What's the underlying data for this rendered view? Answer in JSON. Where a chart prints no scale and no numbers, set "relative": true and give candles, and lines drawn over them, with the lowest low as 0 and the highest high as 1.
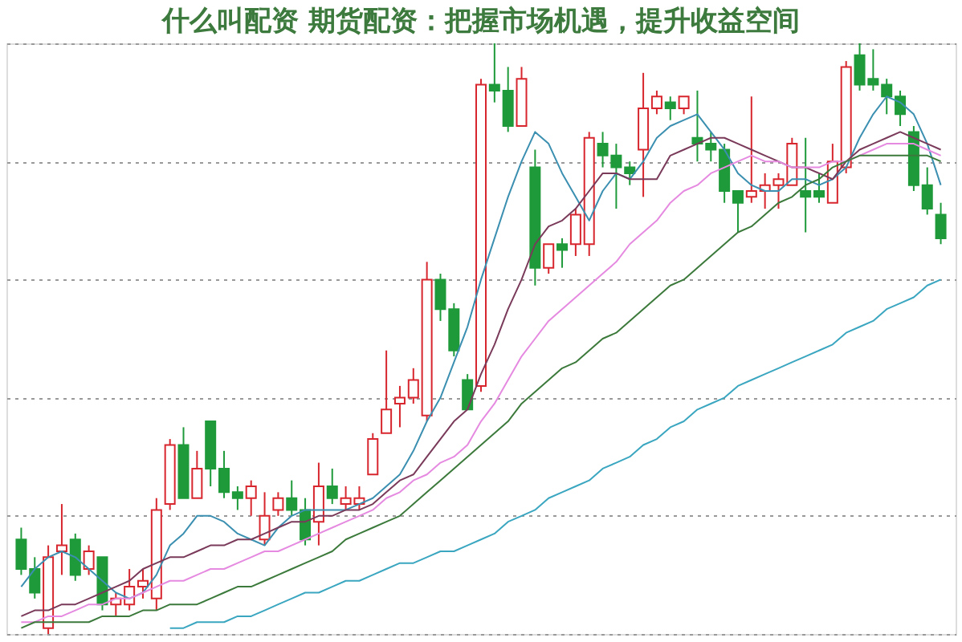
{
  "chart_data": {
    "type": "candlestick",
    "title": "什么叫配资 期货配资：把握市场机遇，提升收益空间",
    "relative": true,
    "grid": "y",
    "categories": [
      null,
      null,
      null,
      null,
      null,
      null,
      null,
      null,
      null,
      null,
      null,
      null,
      null,
      null,
      null,
      null,
      null,
      null,
      null,
      null,
      null,
      null,
      null,
      null,
      null,
      null,
      null,
      null,
      null,
      null,
      null,
      null,
      null,
      null,
      null,
      null,
      null,
      null,
      null,
      null,
      null,
      null,
      null,
      null,
      null,
      null,
      null,
      null,
      null,
      null,
      null,
      null,
      null,
      null,
      null,
      null,
      null,
      null,
      null,
      null,
      null,
      null,
      null,
      null,
      null,
      null,
      null,
      null,
      null
    ],
    "colors": [
      "#1f9a3a",
      "#1f9a3a",
      "#d7262e",
      "#d7262e",
      "#1f9a3a",
      "#d7262e",
      "#1f9a3a",
      "#d7262e",
      "#d7262e",
      "#d7262e",
      "#d7262e",
      "#d7262e",
      "#1f9a3a",
      "#d7262e",
      "#1f9a3a",
      "#1f9a3a",
      "#1f9a3a",
      "#d7262e",
      "#d7262e",
      "#d7262e",
      "#1f9a3a",
      "#1f9a3a",
      "#d7262e",
      "#1f9a3a",
      "#d7262e",
      "#d7262e",
      "#d7262e",
      "#d7262e",
      "#d7262e",
      "#d7262e",
      "#d7262e",
      "#1f9a3a",
      "#1f9a3a",
      "#1f9a3a",
      "#d7262e",
      "#1f9a3a",
      "#1f9a3a",
      "#d7262e",
      "#1f9a3a",
      "#d7262e",
      "#1f9a3a",
      "#d7262e",
      "#d7262e",
      "#1f9a3a",
      "#1f9a3a",
      "#1f9a3a",
      "#d7262e",
      "#d7262e",
      "#1f9a3a",
      "#d7262e",
      "#1f9a3a",
      "#1f9a3a",
      "#1f9a3a",
      "#1f9a3a",
      "#d7262e",
      "#d7262e",
      "#d7262e",
      "#d7262e",
      "#1f9a3a",
      "#1f9a3a",
      "#d7262e",
      "#d7262e",
      "#1f9a3a",
      "#1f9a3a",
      "#1f9a3a",
      "#1f9a3a",
      "#1f9a3a",
      "#1f9a3a",
      "#1f9a3a"
    ],
    "ohlc": [
      [
        0.16,
        0.18,
        0.1,
        0.11
      ],
      [
        0.11,
        0.13,
        0.06,
        0.07
      ],
      [
        0.01,
        0.15,
        0.0,
        0.13
      ],
      [
        0.14,
        0.22,
        0.1,
        0.15
      ],
      [
        0.16,
        0.17,
        0.09,
        0.1
      ],
      [
        0.11,
        0.15,
        0.1,
        0.14
      ],
      [
        0.13,
        0.13,
        0.04,
        0.05
      ],
      [
        0.05,
        0.07,
        0.03,
        0.06
      ],
      [
        0.05,
        0.11,
        0.04,
        0.08
      ],
      [
        0.08,
        0.11,
        0.06,
        0.09
      ],
      [
        0.06,
        0.23,
        0.04,
        0.21
      ],
      [
        0.22,
        0.33,
        0.21,
        0.32
      ],
      [
        0.32,
        0.35,
        0.23,
        0.23
      ],
      [
        0.23,
        0.31,
        0.23,
        0.28
      ],
      [
        0.36,
        0.36,
        0.25,
        0.28
      ],
      [
        0.28,
        0.31,
        0.23,
        0.24
      ],
      [
        0.24,
        0.25,
        0.21,
        0.23
      ],
      [
        0.23,
        0.26,
        0.2,
        0.25
      ],
      [
        0.16,
        0.24,
        0.15,
        0.2
      ],
      [
        0.21,
        0.24,
        0.2,
        0.23
      ],
      [
        0.23,
        0.26,
        0.2,
        0.21
      ],
      [
        0.21,
        0.23,
        0.15,
        0.16
      ],
      [
        0.19,
        0.29,
        0.15,
        0.25
      ],
      [
        0.25,
        0.28,
        0.22,
        0.23
      ],
      [
        0.22,
        0.25,
        0.21,
        0.23
      ],
      [
        0.22,
        0.25,
        0.21,
        0.23
      ],
      [
        0.27,
        0.34,
        0.27,
        0.33
      ],
      [
        0.34,
        0.48,
        0.34,
        0.38
      ],
      [
        0.39,
        0.42,
        0.35,
        0.4
      ],
      [
        0.4,
        0.45,
        0.39,
        0.43
      ],
      [
        0.37,
        0.63,
        0.36,
        0.6
      ],
      [
        0.6,
        0.61,
        0.53,
        0.55
      ],
      [
        0.55,
        0.56,
        0.47,
        0.48
      ],
      [
        0.43,
        0.44,
        0.38,
        0.38
      ],
      [
        0.42,
        0.94,
        0.41,
        0.93
      ],
      [
        0.93,
        1.0,
        0.9,
        0.92
      ],
      [
        0.92,
        0.96,
        0.85,
        0.86
      ],
      [
        0.86,
        0.96,
        0.86,
        0.94
      ],
      [
        0.79,
        0.82,
        0.59,
        0.62
      ],
      [
        0.62,
        0.66,
        0.61,
        0.66
      ],
      [
        0.66,
        0.67,
        0.62,
        0.65
      ],
      [
        0.66,
        0.72,
        0.64,
        0.71
      ],
      [
        0.66,
        0.85,
        0.64,
        0.84
      ],
      [
        0.83,
        0.85,
        0.79,
        0.81
      ],
      [
        0.81,
        0.83,
        0.72,
        0.79
      ],
      [
        0.79,
        0.8,
        0.76,
        0.78
      ],
      [
        0.82,
        0.95,
        0.74,
        0.89
      ],
      [
        0.89,
        0.92,
        0.88,
        0.91
      ],
      [
        0.9,
        0.91,
        0.87,
        0.89
      ],
      [
        0.89,
        0.91,
        0.88,
        0.91
      ],
      [
        0.84,
        0.92,
        0.8,
        0.83
      ],
      [
        0.83,
        0.85,
        0.8,
        0.82
      ],
      [
        0.82,
        0.83,
        0.73,
        0.75
      ],
      [
        0.75,
        0.75,
        0.68,
        0.73
      ],
      [
        0.74,
        0.91,
        0.73,
        0.75
      ],
      [
        0.75,
        0.78,
        0.72,
        0.76
      ],
      [
        0.76,
        0.78,
        0.72,
        0.77
      ],
      [
        0.76,
        0.84,
        0.76,
        0.83
      ],
      [
        0.75,
        0.84,
        0.68,
        0.74
      ],
      [
        0.75,
        0.78,
        0.73,
        0.74
      ],
      [
        0.73,
        0.83,
        0.73,
        0.8
      ],
      [
        0.79,
        0.97,
        0.78,
        0.96
      ],
      [
        0.98,
        1.0,
        0.92,
        0.93
      ],
      [
        0.94,
        0.99,
        0.92,
        0.93
      ],
      [
        0.93,
        0.94,
        0.88,
        0.91
      ],
      [
        0.91,
        0.92,
        0.86,
        0.88
      ],
      [
        0.85,
        0.86,
        0.75,
        0.76
      ],
      [
        0.76,
        0.79,
        0.71,
        0.72
      ],
      [
        0.71,
        0.73,
        0.66,
        0.67
      ]
    ],
    "series": [
      {
        "type": "line",
        "color": "#3b8fb0",
        "values": [
          0.08,
          0.11,
          0.13,
          0.14,
          0.13,
          0.11,
          0.09,
          0.07,
          0.06,
          0.07,
          0.1,
          0.15,
          0.17,
          0.2,
          0.2,
          0.19,
          0.17,
          0.16,
          0.15,
          0.18,
          0.2,
          0.21,
          0.21,
          0.21,
          0.21,
          0.22,
          0.23,
          0.25,
          0.27,
          0.31,
          0.36,
          0.4,
          0.46,
          0.52,
          0.6,
          0.67,
          0.74,
          0.8,
          0.85,
          0.83,
          0.78,
          0.74,
          0.7,
          0.75,
          0.78,
          0.77,
          0.8,
          0.84,
          0.86,
          0.87,
          0.88,
          0.85,
          0.82,
          0.78,
          0.76,
          0.75,
          0.75,
          0.77,
          0.77,
          0.76,
          0.77,
          0.79,
          0.84,
          0.88,
          0.91,
          0.9,
          0.88,
          0.83,
          0.76
        ]
      },
      {
        "type": "line",
        "color": "#7a3a5a",
        "values": [
          0.03,
          0.04,
          0.04,
          0.05,
          0.05,
          0.06,
          0.07,
          0.08,
          0.09,
          0.11,
          0.12,
          0.13,
          0.13,
          0.14,
          0.15,
          0.15,
          0.16,
          0.16,
          0.17,
          0.18,
          0.19,
          0.19,
          0.2,
          0.2,
          0.21,
          0.21,
          0.22,
          0.24,
          0.26,
          0.27,
          0.3,
          0.33,
          0.36,
          0.38,
          0.44,
          0.49,
          0.55,
          0.6,
          0.66,
          0.69,
          0.7,
          0.72,
          0.75,
          0.78,
          0.78,
          0.77,
          0.77,
          0.77,
          0.81,
          0.82,
          0.83,
          0.84,
          0.84,
          0.83,
          0.82,
          0.81,
          0.8,
          0.79,
          0.79,
          0.78,
          0.77,
          0.8,
          0.82,
          0.83,
          0.84,
          0.85,
          0.84,
          0.83,
          0.82
        ]
      },
      {
        "type": "line",
        "color": "#e58ae0",
        "values": [
          0.02,
          0.02,
          0.03,
          0.03,
          0.04,
          0.05,
          0.05,
          0.06,
          0.06,
          0.07,
          0.08,
          0.09,
          0.09,
          0.1,
          0.11,
          0.11,
          0.12,
          0.13,
          0.14,
          0.14,
          0.15,
          0.16,
          0.17,
          0.18,
          0.19,
          0.2,
          0.21,
          0.23,
          0.24,
          0.26,
          0.27,
          0.29,
          0.3,
          0.32,
          0.36,
          0.39,
          0.43,
          0.47,
          0.5,
          0.53,
          0.55,
          0.57,
          0.59,
          0.61,
          0.63,
          0.66,
          0.68,
          0.7,
          0.73,
          0.75,
          0.76,
          0.78,
          0.79,
          0.8,
          0.81,
          0.8,
          0.8,
          0.79,
          0.79,
          0.79,
          0.8,
          0.8,
          0.81,
          0.82,
          0.83,
          0.83,
          0.83,
          0.82,
          0.81
        ]
      },
      {
        "type": "line",
        "color": "#3c7a3c",
        "values": [
          0.01,
          0.02,
          0.02,
          0.02,
          0.02,
          0.02,
          0.03,
          0.03,
          0.03,
          0.04,
          0.04,
          0.05,
          0.05,
          0.05,
          0.06,
          0.07,
          0.08,
          0.08,
          0.09,
          0.1,
          0.11,
          0.12,
          0.13,
          0.14,
          0.16,
          0.17,
          0.18,
          0.19,
          0.2,
          0.22,
          0.24,
          0.26,
          0.28,
          0.3,
          0.32,
          0.34,
          0.36,
          0.39,
          0.41,
          0.43,
          0.45,
          0.46,
          0.48,
          0.5,
          0.51,
          0.53,
          0.55,
          0.57,
          0.59,
          0.6,
          0.62,
          0.64,
          0.66,
          0.68,
          0.69,
          0.71,
          0.73,
          0.74,
          0.76,
          0.77,
          0.79,
          0.8,
          0.81,
          0.81,
          0.81,
          0.81,
          0.81,
          0.81,
          0.8
        ]
      },
      {
        "type": "line",
        "color": "#3aa6c0",
        "values": [
          null,
          null,
          null,
          null,
          null,
          null,
          null,
          null,
          null,
          null,
          null,
          0.01,
          0.01,
          0.02,
          0.02,
          0.02,
          0.03,
          0.03,
          0.04,
          0.05,
          0.06,
          0.07,
          0.07,
          0.08,
          0.09,
          0.09,
          0.1,
          0.11,
          0.12,
          0.12,
          0.13,
          0.14,
          0.14,
          0.15,
          0.16,
          0.17,
          0.19,
          0.2,
          0.21,
          0.23,
          0.24,
          0.25,
          0.26,
          0.28,
          0.29,
          0.3,
          0.32,
          0.33,
          0.35,
          0.36,
          0.38,
          0.39,
          0.4,
          0.42,
          0.43,
          0.44,
          0.45,
          0.46,
          0.47,
          0.48,
          0.49,
          0.51,
          0.52,
          0.53,
          0.55,
          0.56,
          0.57,
          0.59,
          0.6
        ]
      }
    ]
  }
}
